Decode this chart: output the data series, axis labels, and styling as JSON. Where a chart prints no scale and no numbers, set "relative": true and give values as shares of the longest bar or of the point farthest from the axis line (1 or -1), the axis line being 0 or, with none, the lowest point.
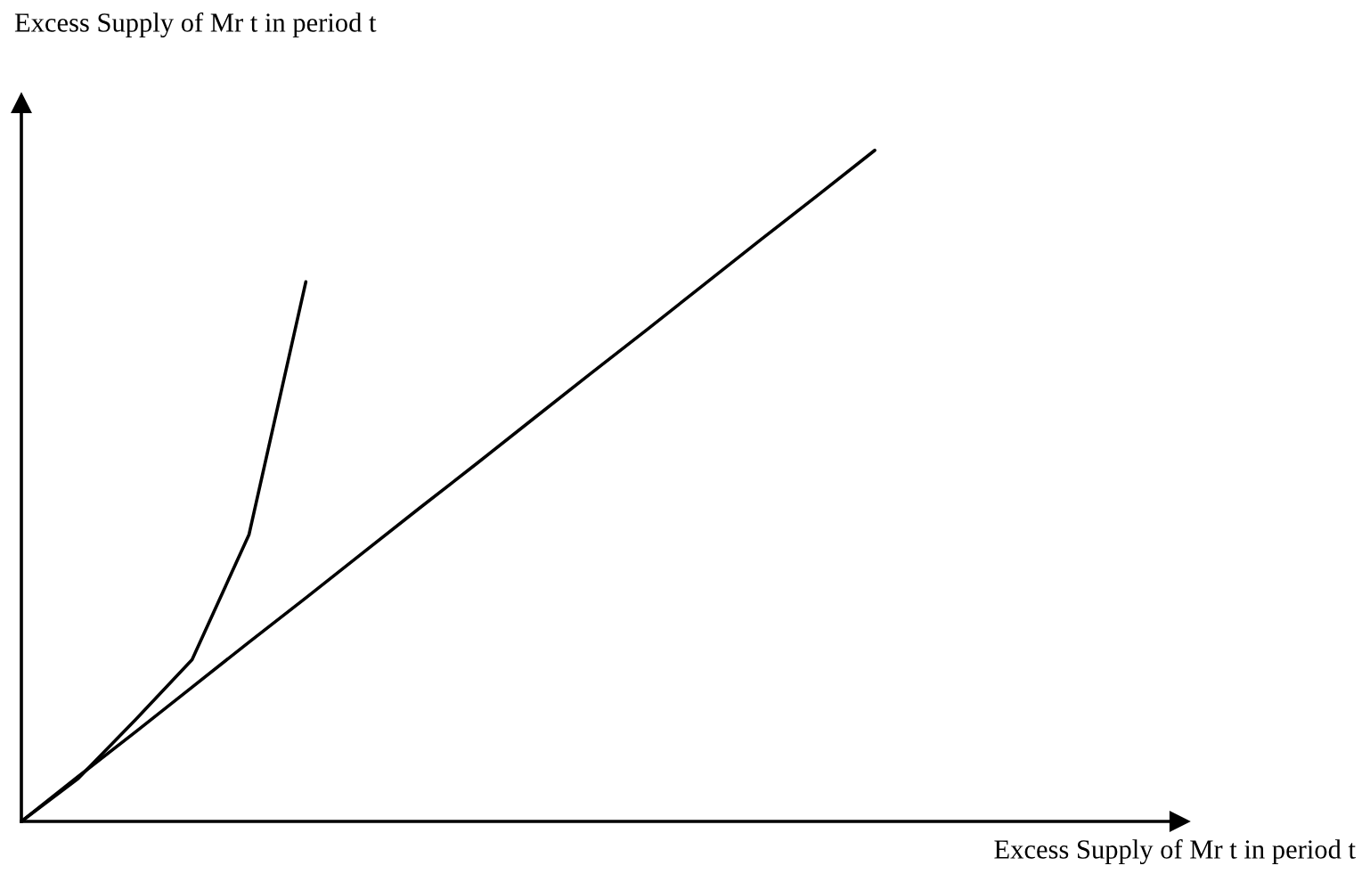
{
  "chart_data": {
    "type": "line",
    "relative": true,
    "xlabel": "Excess Supply of Mr t in period t",
    "ylabel": "Excess Supply of Mr t in period t",
    "categories": [
      null,
      null,
      null,
      null,
      null,
      null,
      null,
      null,
      null,
      null,
      null,
      null,
      null,
      null,
      null,
      null
    ],
    "series": [
      {
        "color": "#000000",
        "values": [
          0,
          0.064,
          0.151,
          0.241,
          0.427,
          0.804,
          null,
          null,
          null,
          null,
          null,
          null,
          null,
          null,
          null,
          null
        ]
      },
      {
        "color": "#000000",
        "values": [
          0,
          0.067,
          0.133,
          0.2,
          0.267,
          0.333,
          0.4,
          0.467,
          0.533,
          0.6,
          0.667,
          0.733,
          0.8,
          0.867,
          0.933,
          1
        ]
      }
    ]
  }
}
